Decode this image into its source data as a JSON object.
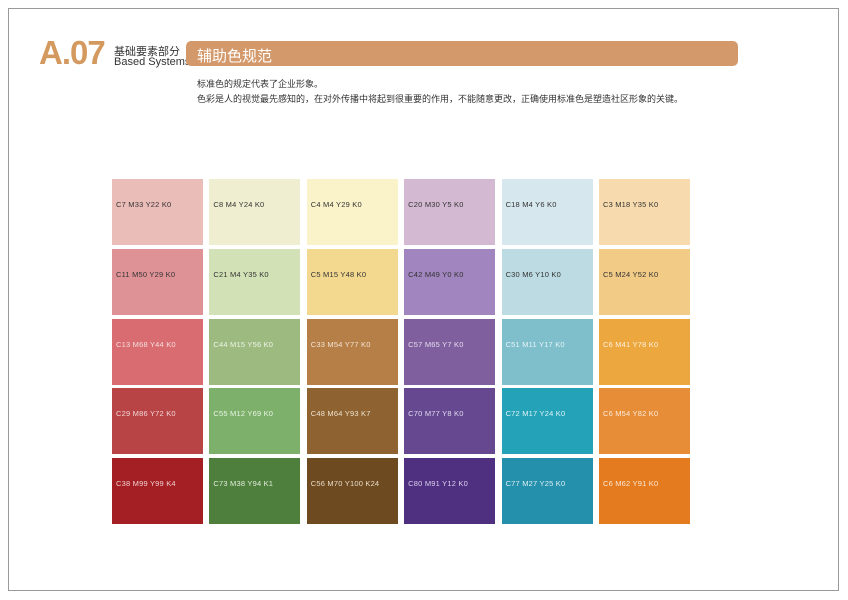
{
  "header": {
    "code": "A.07",
    "section_cn": "基础要素部分",
    "section_en": "Based Systems",
    "title": "辅助色规范"
  },
  "description": [
    "标准色的规定代表了企业形象。",
    "色彩是人的视觉最先感知的，在对外传播中将起到很重要的作用，不能随意更改，正确使用标准色是塑造社区形象的关键。"
  ],
  "swatches": [
    {
      "label": "C7 M33 Y22 K0",
      "color": "#ebbdb9",
      "text": "#333"
    },
    {
      "label": "C11 M50 Y29 K0",
      "color": "#df9296",
      "text": "#333"
    },
    {
      "label": "C13 M68 Y44 K0",
      "color": "#d96c70",
      "text": "#f4dede"
    },
    {
      "label": "C29 M86 Y72 K0",
      "color": "#b94446",
      "text": "#f2d6d6"
    },
    {
      "label": "C38 M99 Y99 K4",
      "color": "#a41f24",
      "text": "#f0d0d0"
    },
    {
      "label": "C8 M4 Y24 K0",
      "color": "#efeed0",
      "text": "#333"
    },
    {
      "label": "C21 M4 Y35 K0",
      "color": "#d3e2b6",
      "text": "#333"
    },
    {
      "label": "C44 M15 Y56 K0",
      "color": "#9dbb81",
      "text": "#eef4e6"
    },
    {
      "label": "C55 M12 Y69 K0",
      "color": "#7db16b",
      "text": "#eaf4e4"
    },
    {
      "label": "C73 M38 Y94 K1",
      "color": "#4f7f3d",
      "text": "#e4eedd"
    },
    {
      "label": "C4 M4 Y29 K0",
      "color": "#faf3c9",
      "text": "#333"
    },
    {
      "label": "C5 M15 Y48 K0",
      "color": "#f3d990",
      "text": "#333"
    },
    {
      "label": "C33 M54 Y77 K0",
      "color": "#b67f48",
      "text": "#f3e4d3"
    },
    {
      "label": "C48 M64 Y93 K7",
      "color": "#8e6331",
      "text": "#efe2d0"
    },
    {
      "label": "C56 M70 Y100 K24",
      "color": "#6d4a20",
      "text": "#eadccb"
    },
    {
      "label": "C20 M30 Y5 K0",
      "color": "#d4b9d3",
      "text": "#333"
    },
    {
      "label": "C42 M49 Y0 K0",
      "color": "#a085be",
      "text": "#333"
    },
    {
      "label": "C57 M65 Y7 K0",
      "color": "#7f5f9d",
      "text": "#e6ddf0"
    },
    {
      "label": "C70 M77 Y8 K0",
      "color": "#654890",
      "text": "#e2daf0"
    },
    {
      "label": "C80 M91 Y12 K0",
      "color": "#4f2f80",
      "text": "#dcd2ee"
    },
    {
      "label": "C18 M4 Y6 K0",
      "color": "#d6e7ee",
      "text": "#333"
    },
    {
      "label": "C30 M6 Y10 K0",
      "color": "#bcdbe2",
      "text": "#333"
    },
    {
      "label": "C51 M11 Y17 K0",
      "color": "#7fbfcc",
      "text": "#e6f4f7"
    },
    {
      "label": "C72 M17 Y24 K0",
      "color": "#24a2b8",
      "text": "#e0f3f6"
    },
    {
      "label": "C77 M27 Y25 K0",
      "color": "#2590ac",
      "text": "#dff0f5"
    },
    {
      "label": "C3 M18 Y35 K0",
      "color": "#f7dbae",
      "text": "#333"
    },
    {
      "label": "C5 M24 Y52 K0",
      "color": "#f2cb87",
      "text": "#333"
    },
    {
      "label": "C6 M41 Y78 K0",
      "color": "#eda73f",
      "text": "#fcf0de"
    },
    {
      "label": "C6 M54 Y82 K0",
      "color": "#e78c37",
      "text": "#fcecdc"
    },
    {
      "label": "C6 M62 Y91 K0",
      "color": "#e47b1f",
      "text": "#fce8d6"
    }
  ]
}
